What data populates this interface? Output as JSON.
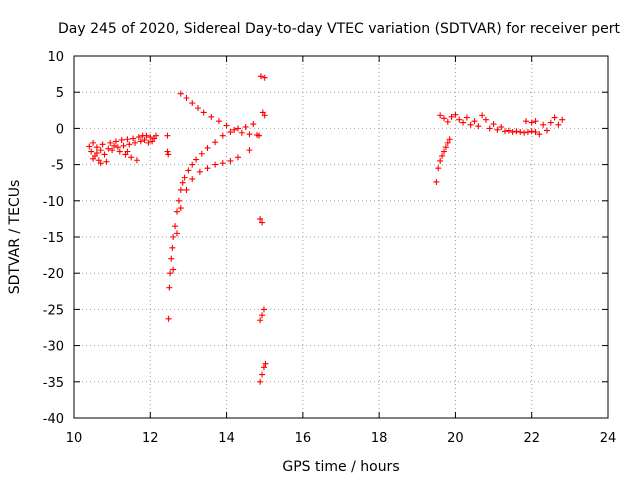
{
  "chart_data": {
    "type": "scatter",
    "title": "Day 245 of 2020, Sidereal Day-to-day VTEC variation (SDTVAR) for receiver pert",
    "xlabel": "GPS time / hours",
    "ylabel": "SDTVAR / TECUs",
    "xlim": [
      10,
      24
    ],
    "ylim": [
      -40,
      10
    ],
    "xticks": [
      10,
      12,
      14,
      16,
      18,
      20,
      22,
      24
    ],
    "yticks": [
      10,
      5,
      0,
      -5,
      -10,
      -15,
      -20,
      -25,
      -30,
      -35,
      -40
    ],
    "grid": true,
    "marker": "+",
    "color": "#ff0000",
    "series": [
      {
        "name": "SDTVAR",
        "points": [
          [
            10.4,
            -2.5
          ],
          [
            10.45,
            -3.2
          ],
          [
            10.5,
            -2.0
          ],
          [
            10.55,
            -3.8
          ],
          [
            10.6,
            -2.6
          ],
          [
            10.65,
            -4.4
          ],
          [
            10.7,
            -3.0
          ],
          [
            10.75,
            -2.2
          ],
          [
            10.8,
            -3.6
          ],
          [
            10.85,
            -4.6
          ],
          [
            10.9,
            -2.8
          ],
          [
            10.95,
            -2.0
          ],
          [
            11.0,
            -3.0
          ],
          [
            11.05,
            -2.4
          ],
          [
            11.1,
            -1.8
          ],
          [
            11.15,
            -2.6
          ],
          [
            11.2,
            -3.2
          ],
          [
            11.25,
            -1.6
          ],
          [
            11.3,
            -2.4
          ],
          [
            11.35,
            -3.6
          ],
          [
            11.4,
            -1.5
          ],
          [
            11.45,
            -2.2
          ],
          [
            11.5,
            -4.0
          ],
          [
            11.55,
            -1.4
          ],
          [
            11.6,
            -2.0
          ],
          [
            11.65,
            -4.4
          ],
          [
            11.7,
            -1.2
          ],
          [
            11.75,
            -1.8
          ],
          [
            11.8,
            -1.0
          ],
          [
            11.85,
            -1.6
          ],
          [
            11.9,
            -1.0
          ],
          [
            11.95,
            -2.0
          ],
          [
            12.0,
            -1.2
          ],
          [
            12.05,
            -1.8
          ],
          [
            12.1,
            -1.4
          ],
          [
            12.15,
            -1.0
          ],
          [
            10.5,
            -4.2
          ],
          [
            10.6,
            -3.4
          ],
          [
            10.7,
            -4.8
          ],
          [
            11.4,
            -3.2
          ],
          [
            12.45,
            -1.0
          ],
          [
            12.45,
            -3.2
          ],
          [
            12.47,
            -3.6
          ],
          [
            12.48,
            -26.3
          ],
          [
            12.5,
            -22.0
          ],
          [
            12.52,
            -20.0
          ],
          [
            12.55,
            -18.0
          ],
          [
            12.58,
            -16.5
          ],
          [
            12.6,
            -15.0
          ],
          [
            12.65,
            -13.5
          ],
          [
            12.7,
            -11.5
          ],
          [
            12.75,
            -10.0
          ],
          [
            12.8,
            -8.5
          ],
          [
            12.85,
            -7.5
          ],
          [
            12.9,
            -6.8
          ],
          [
            13.0,
            -5.8
          ],
          [
            13.1,
            -5.0
          ],
          [
            13.2,
            -4.3
          ],
          [
            13.35,
            -3.5
          ],
          [
            13.5,
            -2.7
          ],
          [
            13.7,
            -1.9
          ],
          [
            13.9,
            -1.0
          ],
          [
            14.1,
            -0.5
          ],
          [
            14.3,
            0.0
          ],
          [
            14.5,
            0.2
          ],
          [
            14.7,
            0.6
          ],
          [
            12.6,
            -19.5
          ],
          [
            12.7,
            -14.5
          ],
          [
            12.8,
            -11.0
          ],
          [
            12.95,
            -8.5
          ],
          [
            13.1,
            -7.0
          ],
          [
            13.3,
            -6.0
          ],
          [
            13.5,
            -5.5
          ],
          [
            13.7,
            -5.0
          ],
          [
            13.9,
            -4.8
          ],
          [
            14.1,
            -4.5
          ],
          [
            14.3,
            -4.0
          ],
          [
            14.6,
            -3.0
          ],
          [
            14.85,
            -1.0
          ],
          [
            12.8,
            4.8
          ],
          [
            12.95,
            4.2
          ],
          [
            13.1,
            3.5
          ],
          [
            13.25,
            2.8
          ],
          [
            13.4,
            2.2
          ],
          [
            13.6,
            1.6
          ],
          [
            13.8,
            1.0
          ],
          [
            14.0,
            0.4
          ],
          [
            14.2,
            -0.2
          ],
          [
            14.4,
            -0.6
          ],
          [
            14.6,
            -0.8
          ],
          [
            14.8,
            -0.9
          ],
          [
            14.9,
            7.2
          ],
          [
            15.0,
            7.0
          ],
          [
            14.95,
            2.2
          ],
          [
            15.0,
            1.8
          ],
          [
            14.88,
            -12.5
          ],
          [
            14.93,
            -13.0
          ],
          [
            14.88,
            -26.5
          ],
          [
            14.93,
            -25.8
          ],
          [
            14.98,
            -25.0
          ],
          [
            14.88,
            -35.0
          ],
          [
            14.93,
            -34.0
          ],
          [
            14.98,
            -33.0
          ],
          [
            15.02,
            -32.5
          ],
          [
            19.5,
            -7.4
          ],
          [
            19.55,
            -5.5
          ],
          [
            19.6,
            -4.5
          ],
          [
            19.65,
            -3.8
          ],
          [
            19.7,
            -3.2
          ],
          [
            19.75,
            -2.6
          ],
          [
            19.8,
            -2.0
          ],
          [
            19.85,
            -1.5
          ],
          [
            19.6,
            1.8
          ],
          [
            19.7,
            1.4
          ],
          [
            19.8,
            0.9
          ],
          [
            19.9,
            1.6
          ],
          [
            20.0,
            1.9
          ],
          [
            20.1,
            1.2
          ],
          [
            20.2,
            0.8
          ],
          [
            20.3,
            1.5
          ],
          [
            20.4,
            0.5
          ],
          [
            20.5,
            1.0
          ],
          [
            20.6,
            0.3
          ],
          [
            20.7,
            1.8
          ],
          [
            20.8,
            1.2
          ],
          [
            20.9,
            0.0
          ],
          [
            21.0,
            0.6
          ],
          [
            21.1,
            -0.2
          ],
          [
            21.2,
            0.2
          ],
          [
            21.3,
            -0.4
          ],
          [
            21.4,
            -0.3
          ],
          [
            21.5,
            -0.5
          ],
          [
            21.6,
            -0.4
          ],
          [
            21.7,
            -0.5
          ],
          [
            21.8,
            -0.6
          ],
          [
            21.9,
            -0.5
          ],
          [
            22.0,
            -0.4
          ],
          [
            22.1,
            -0.5
          ],
          [
            21.85,
            1.0
          ],
          [
            22.0,
            0.8
          ],
          [
            22.1,
            1.0
          ],
          [
            22.2,
            -0.8
          ],
          [
            22.3,
            0.5
          ],
          [
            22.4,
            -0.3
          ],
          [
            22.5,
            0.8
          ],
          [
            22.6,
            1.5
          ],
          [
            22.7,
            0.5
          ],
          [
            22.8,
            1.2
          ]
        ]
      }
    ]
  }
}
